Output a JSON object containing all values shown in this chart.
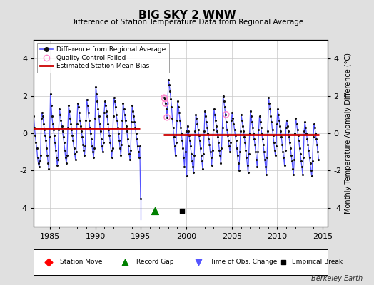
{
  "title": "BIG SKY 2 WNW",
  "subtitle": "Difference of Station Temperature Data from Regional Average",
  "ylabel": "Monthly Temperature Anomaly Difference (°C)",
  "xlim": [
    1983.2,
    2015.5
  ],
  "ylim": [
    -5,
    5
  ],
  "yticks": [
    -4,
    -2,
    0,
    2,
    4
  ],
  "ytick_labels": [
    "-4",
    "-2",
    "0",
    "2",
    "4"
  ],
  "xticks": [
    1985,
    1990,
    1995,
    2000,
    2005,
    2010,
    2015
  ],
  "bg_color": "#e0e0e0",
  "plot_bg_color": "#ffffff",
  "grid_color": "#c8c8c8",
  "line_color": "#5555ff",
  "dot_color": "#111111",
  "bias_color": "#cc0000",
  "qc_color": "#ff88cc",
  "watermark": "Berkeley Earth",
  "segment1_x0": 1983.2,
  "segment1_x1": 1994.9,
  "segment1_y": 0.25,
  "segment2_x0": 1997.5,
  "segment2_x1": 2014.6,
  "segment2_y": -0.07,
  "record_gap_x": 1996.5,
  "record_gap_y": -4.15,
  "empirical_break_x": 1999.5,
  "empirical_break_y": -4.15,
  "gap_line_x": 1994.7,
  "gap_line_y_top": -3.4,
  "gap_line_y_bot": -4.6,
  "time_series": [
    [
      1983.042,
      0.75
    ],
    [
      1983.125,
      0.5
    ],
    [
      1983.208,
      0.9
    ],
    [
      1983.292,
      0.3
    ],
    [
      1983.375,
      -0.1
    ],
    [
      1983.458,
      -0.5
    ],
    [
      1983.542,
      -0.8
    ],
    [
      1983.625,
      -1.3
    ],
    [
      1983.708,
      -1.6
    ],
    [
      1983.792,
      -1.8
    ],
    [
      1983.875,
      -1.5
    ],
    [
      1983.958,
      -1.2
    ],
    [
      1984.042,
      0.8
    ],
    [
      1984.125,
      1.1
    ],
    [
      1984.208,
      0.9
    ],
    [
      1984.292,
      0.5
    ],
    [
      1984.375,
      0.2
    ],
    [
      1984.458,
      -0.1
    ],
    [
      1984.542,
      -0.4
    ],
    [
      1984.625,
      -0.8
    ],
    [
      1984.708,
      -1.2
    ],
    [
      1984.792,
      -1.6
    ],
    [
      1984.875,
      -1.9
    ],
    [
      1984.958,
      -0.2
    ],
    [
      1985.042,
      2.1
    ],
    [
      1985.125,
      1.5
    ],
    [
      1985.208,
      0.9
    ],
    [
      1985.292,
      0.5
    ],
    [
      1985.375,
      0.2
    ],
    [
      1985.458,
      -0.1
    ],
    [
      1985.542,
      -0.5
    ],
    [
      1985.625,
      -0.9
    ],
    [
      1985.708,
      -1.3
    ],
    [
      1985.792,
      -1.7
    ],
    [
      1985.875,
      -1.4
    ],
    [
      1985.958,
      0.2
    ],
    [
      1986.042,
      1.3
    ],
    [
      1986.125,
      1.0
    ],
    [
      1986.208,
      0.7
    ],
    [
      1986.292,
      0.4
    ],
    [
      1986.375,
      0.1
    ],
    [
      1986.458,
      -0.2
    ],
    [
      1986.542,
      -0.5
    ],
    [
      1986.625,
      -0.9
    ],
    [
      1986.708,
      -1.3
    ],
    [
      1986.792,
      -1.6
    ],
    [
      1986.875,
      -1.2
    ],
    [
      1986.958,
      0.3
    ],
    [
      1987.042,
      1.5
    ],
    [
      1987.125,
      1.2
    ],
    [
      1987.208,
      0.8
    ],
    [
      1987.292,
      0.5
    ],
    [
      1987.375,
      0.2
    ],
    [
      1987.458,
      -0.1
    ],
    [
      1987.542,
      -0.4
    ],
    [
      1987.625,
      -0.8
    ],
    [
      1987.708,
      -1.1
    ],
    [
      1987.792,
      -1.4
    ],
    [
      1987.875,
      -1.0
    ],
    [
      1987.958,
      0.5
    ],
    [
      1988.042,
      1.6
    ],
    [
      1988.125,
      1.4
    ],
    [
      1988.208,
      1.1
    ],
    [
      1988.292,
      0.7
    ],
    [
      1988.375,
      0.4
    ],
    [
      1988.458,
      0.1
    ],
    [
      1988.542,
      -0.2
    ],
    [
      1988.625,
      -0.6
    ],
    [
      1988.708,
      -0.9
    ],
    [
      1988.792,
      -1.2
    ],
    [
      1988.875,
      -0.7
    ],
    [
      1988.958,
      0.7
    ],
    [
      1989.042,
      1.8
    ],
    [
      1989.125,
      1.5
    ],
    [
      1989.208,
      1.1
    ],
    [
      1989.292,
      0.7
    ],
    [
      1989.375,
      0.3
    ],
    [
      1989.458,
      0.0
    ],
    [
      1989.542,
      -0.3
    ],
    [
      1989.625,
      -0.7
    ],
    [
      1989.708,
      -1.0
    ],
    [
      1989.792,
      -1.3
    ],
    [
      1989.875,
      -0.8
    ],
    [
      1989.958,
      0.8
    ],
    [
      1990.042,
      2.5
    ],
    [
      1990.125,
      2.1
    ],
    [
      1990.208,
      1.7
    ],
    [
      1990.292,
      1.3
    ],
    [
      1990.375,
      0.9
    ],
    [
      1990.458,
      0.5
    ],
    [
      1990.542,
      0.1
    ],
    [
      1990.625,
      -0.3
    ],
    [
      1990.708,
      -0.7
    ],
    [
      1990.792,
      -1.0
    ],
    [
      1990.875,
      -0.5
    ],
    [
      1990.958,
      1.1
    ],
    [
      1991.042,
      1.7
    ],
    [
      1991.125,
      1.5
    ],
    [
      1991.208,
      1.2
    ],
    [
      1991.292,
      0.9
    ],
    [
      1991.375,
      0.5
    ],
    [
      1991.458,
      0.2
    ],
    [
      1991.542,
      -0.1
    ],
    [
      1991.625,
      -0.5
    ],
    [
      1991.708,
      -0.9
    ],
    [
      1991.792,
      -1.3
    ],
    [
      1991.875,
      -0.8
    ],
    [
      1991.958,
      0.9
    ],
    [
      1992.042,
      1.9
    ],
    [
      1992.125,
      1.7
    ],
    [
      1992.208,
      1.4
    ],
    [
      1992.292,
      1.0
    ],
    [
      1992.375,
      0.7
    ],
    [
      1992.458,
      0.3
    ],
    [
      1992.542,
      0.0
    ],
    [
      1992.625,
      -0.4
    ],
    [
      1992.708,
      -0.8
    ],
    [
      1992.792,
      -1.2
    ],
    [
      1992.875,
      -0.6
    ],
    [
      1992.958,
      0.7
    ],
    [
      1993.042,
      1.6
    ],
    [
      1993.125,
      1.3
    ],
    [
      1993.208,
      1.0
    ],
    [
      1993.292,
      0.7
    ],
    [
      1993.375,
      0.4
    ],
    [
      1993.458,
      0.1
    ],
    [
      1993.542,
      -0.3
    ],
    [
      1993.625,
      -0.7
    ],
    [
      1993.708,
      -1.1
    ],
    [
      1993.792,
      -1.4
    ],
    [
      1993.875,
      -0.9
    ],
    [
      1993.958,
      0.6
    ],
    [
      1994.042,
      1.5
    ],
    [
      1994.125,
      1.2
    ],
    [
      1994.208,
      0.9
    ],
    [
      1994.292,
      0.6
    ],
    [
      1994.375,
      0.3
    ],
    [
      1994.458,
      0.0
    ],
    [
      1994.542,
      -0.3
    ],
    [
      1994.625,
      -0.7
    ],
    [
      1994.708,
      -1.0
    ],
    [
      1994.792,
      -1.3
    ],
    [
      1994.875,
      -0.7
    ],
    [
      1994.958,
      -3.5
    ],
    [
      1997.542,
      1.9
    ],
    [
      1997.625,
      1.85
    ],
    [
      1997.708,
      1.6
    ],
    [
      1997.792,
      1.3
    ],
    [
      1997.875,
      0.85
    ],
    [
      1998.042,
      2.85
    ],
    [
      1998.125,
      2.6
    ],
    [
      1998.208,
      2.25
    ],
    [
      1998.292,
      1.85
    ],
    [
      1998.375,
      1.4
    ],
    [
      1998.458,
      0.8
    ],
    [
      1998.542,
      0.3
    ],
    [
      1998.625,
      -0.2
    ],
    [
      1998.708,
      -0.7
    ],
    [
      1998.792,
      -1.2
    ],
    [
      1998.875,
      -0.5
    ],
    [
      1998.958,
      0.7
    ],
    [
      1999.042,
      1.7
    ],
    [
      1999.125,
      1.4
    ],
    [
      1999.208,
      1.1
    ],
    [
      1999.292,
      0.7
    ],
    [
      1999.375,
      0.3
    ],
    [
      1999.458,
      0.0
    ],
    [
      1999.542,
      -0.4
    ],
    [
      1999.625,
      -0.8
    ],
    [
      1999.708,
      -1.3
    ],
    [
      1999.792,
      -1.8
    ],
    [
      1999.875,
      -1.0
    ],
    [
      1999.958,
      0.1
    ],
    [
      2000.042,
      -2.3
    ],
    [
      2000.125,
      0.4
    ],
    [
      2000.208,
      0.1
    ],
    [
      2000.292,
      -0.1
    ],
    [
      2000.375,
      -0.4
    ],
    [
      2000.458,
      -0.7
    ],
    [
      2000.542,
      -1.1
    ],
    [
      2000.625,
      -1.5
    ],
    [
      2000.708,
      -1.8
    ],
    [
      2000.792,
      -2.1
    ],
    [
      2000.875,
      -1.2
    ],
    [
      2000.958,
      0.1
    ],
    [
      2001.042,
      1.0
    ],
    [
      2001.125,
      0.8
    ],
    [
      2001.208,
      0.5
    ],
    [
      2001.292,
      0.2
    ],
    [
      2001.375,
      -0.1
    ],
    [
      2001.458,
      -0.4
    ],
    [
      2001.542,
      -0.8
    ],
    [
      2001.625,
      -1.2
    ],
    [
      2001.708,
      -1.5
    ],
    [
      2001.792,
      -1.9
    ],
    [
      2001.875,
      -1.1
    ],
    [
      2001.958,
      0.1
    ],
    [
      2002.042,
      1.2
    ],
    [
      2002.125,
      0.9
    ],
    [
      2002.208,
      0.6
    ],
    [
      2002.292,
      0.3
    ],
    [
      2002.375,
      0.0
    ],
    [
      2002.458,
      -0.3
    ],
    [
      2002.542,
      -0.6
    ],
    [
      2002.625,
      -1.0
    ],
    [
      2002.708,
      -1.3
    ],
    [
      2002.792,
      -1.7
    ],
    [
      2002.875,
      -0.9
    ],
    [
      2002.958,
      0.2
    ],
    [
      2003.042,
      1.3
    ],
    [
      2003.125,
      1.0
    ],
    [
      2003.208,
      0.7
    ],
    [
      2003.292,
      0.4
    ],
    [
      2003.375,
      0.1
    ],
    [
      2003.458,
      -0.2
    ],
    [
      2003.542,
      -0.5
    ],
    [
      2003.625,
      -0.9
    ],
    [
      2003.708,
      -1.2
    ],
    [
      2003.792,
      -1.6
    ],
    [
      2003.875,
      -0.8
    ],
    [
      2003.958,
      0.3
    ],
    [
      2004.042,
      2.0
    ],
    [
      2004.125,
      1.7
    ],
    [
      2004.208,
      1.4
    ],
    [
      2004.292,
      1.0
    ],
    [
      2004.375,
      0.6
    ],
    [
      2004.458,
      0.2
    ],
    [
      2004.542,
      -0.1
    ],
    [
      2004.625,
      -0.4
    ],
    [
      2004.708,
      -0.7
    ],
    [
      2004.792,
      -1.0
    ],
    [
      2004.875,
      -0.5
    ],
    [
      2004.958,
      0.7
    ],
    [
      2005.042,
      1.1
    ],
    [
      2005.125,
      0.8
    ],
    [
      2005.208,
      0.5
    ],
    [
      2005.292,
      0.2
    ],
    [
      2005.375,
      -0.1
    ],
    [
      2005.458,
      -0.4
    ],
    [
      2005.542,
      -0.8
    ],
    [
      2005.625,
      -1.2
    ],
    [
      2005.708,
      -1.6
    ],
    [
      2005.792,
      -2.0
    ],
    [
      2005.875,
      -1.0
    ],
    [
      2005.958,
      0.1
    ],
    [
      2006.042,
      1.0
    ],
    [
      2006.125,
      0.7
    ],
    [
      2006.208,
      0.4
    ],
    [
      2006.292,
      0.1
    ],
    [
      2006.375,
      -0.2
    ],
    [
      2006.458,
      -0.5
    ],
    [
      2006.542,
      -0.9
    ],
    [
      2006.625,
      -1.3
    ],
    [
      2006.708,
      -1.7
    ],
    [
      2006.792,
      -2.1
    ],
    [
      2006.875,
      -1.1
    ],
    [
      2006.958,
      0.0
    ],
    [
      2007.042,
      1.2
    ],
    [
      2007.125,
      0.9
    ],
    [
      2007.208,
      0.6
    ],
    [
      2007.292,
      0.3
    ],
    [
      2007.375,
      0.0
    ],
    [
      2007.458,
      -0.3
    ],
    [
      2007.542,
      -0.6
    ],
    [
      2007.625,
      -1.0
    ],
    [
      2007.708,
      -1.4
    ],
    [
      2007.792,
      -1.8
    ],
    [
      2007.875,
      -1.0
    ],
    [
      2007.958,
      0.2
    ],
    [
      2008.042,
      0.9
    ],
    [
      2008.125,
      0.6
    ],
    [
      2008.208,
      0.3
    ],
    [
      2008.292,
      0.0
    ],
    [
      2008.375,
      -0.3
    ],
    [
      2008.458,
      -0.6
    ],
    [
      2008.542,
      -1.0
    ],
    [
      2008.625,
      -1.4
    ],
    [
      2008.708,
      -1.8
    ],
    [
      2008.792,
      -2.2
    ],
    [
      2008.875,
      -1.3
    ],
    [
      2008.958,
      0.1
    ],
    [
      2009.042,
      1.9
    ],
    [
      2009.125,
      1.6
    ],
    [
      2009.208,
      1.3
    ],
    [
      2009.292,
      0.9
    ],
    [
      2009.375,
      0.6
    ],
    [
      2009.458,
      0.2
    ],
    [
      2009.542,
      -0.1
    ],
    [
      2009.625,
      -0.5
    ],
    [
      2009.708,
      -0.9
    ],
    [
      2009.792,
      -1.2
    ],
    [
      2009.875,
      -0.7
    ],
    [
      2009.958,
      0.5
    ],
    [
      2010.042,
      1.3
    ],
    [
      2010.125,
      1.0
    ],
    [
      2010.208,
      0.7
    ],
    [
      2010.292,
      0.4
    ],
    [
      2010.375,
      0.1
    ],
    [
      2010.458,
      -0.2
    ],
    [
      2010.542,
      -0.6
    ],
    [
      2010.625,
      -1.0
    ],
    [
      2010.708,
      -1.3
    ],
    [
      2010.792,
      -1.7
    ],
    [
      2010.875,
      -0.9
    ],
    [
      2010.958,
      0.3
    ],
    [
      2011.042,
      0.7
    ],
    [
      2011.125,
      0.4
    ],
    [
      2011.208,
      0.1
    ],
    [
      2011.292,
      -0.2
    ],
    [
      2011.375,
      -0.5
    ],
    [
      2011.458,
      -0.8
    ],
    [
      2011.542,
      -1.2
    ],
    [
      2011.625,
      -1.5
    ],
    [
      2011.708,
      -1.9
    ],
    [
      2011.792,
      -2.2
    ],
    [
      2011.875,
      -1.4
    ],
    [
      2011.958,
      0.0
    ],
    [
      2012.042,
      0.8
    ],
    [
      2012.125,
      0.5
    ],
    [
      2012.208,
      0.2
    ],
    [
      2012.292,
      -0.1
    ],
    [
      2012.375,
      -0.4
    ],
    [
      2012.458,
      -0.8
    ],
    [
      2012.542,
      -1.1
    ],
    [
      2012.625,
      -1.5
    ],
    [
      2012.708,
      -1.8
    ],
    [
      2012.792,
      -2.2
    ],
    [
      2012.875,
      -1.3
    ],
    [
      2012.958,
      0.1
    ],
    [
      2013.042,
      0.6
    ],
    [
      2013.125,
      0.3
    ],
    [
      2013.208,
      0.0
    ],
    [
      2013.292,
      -0.3
    ],
    [
      2013.375,
      -0.6
    ],
    [
      2013.458,
      -0.9
    ],
    [
      2013.542,
      -1.3
    ],
    [
      2013.625,
      -1.6
    ],
    [
      2013.708,
      -2.0
    ],
    [
      2013.792,
      -2.3
    ],
    [
      2013.875,
      -1.5
    ],
    [
      2013.958,
      -0.2
    ],
    [
      2014.042,
      0.5
    ],
    [
      2014.125,
      0.3
    ],
    [
      2014.208,
      0.0
    ],
    [
      2014.292,
      -0.3
    ],
    [
      2014.375,
      -0.6
    ],
    [
      2014.458,
      -1.0
    ],
    [
      2014.542,
      -1.4
    ]
  ],
  "qc_points": [
    [
      1997.542,
      1.9
    ],
    [
      1997.625,
      1.85
    ],
    [
      1997.708,
      1.6
    ],
    [
      1997.875,
      0.85
    ],
    [
      2004.375,
      1.0
    ]
  ]
}
